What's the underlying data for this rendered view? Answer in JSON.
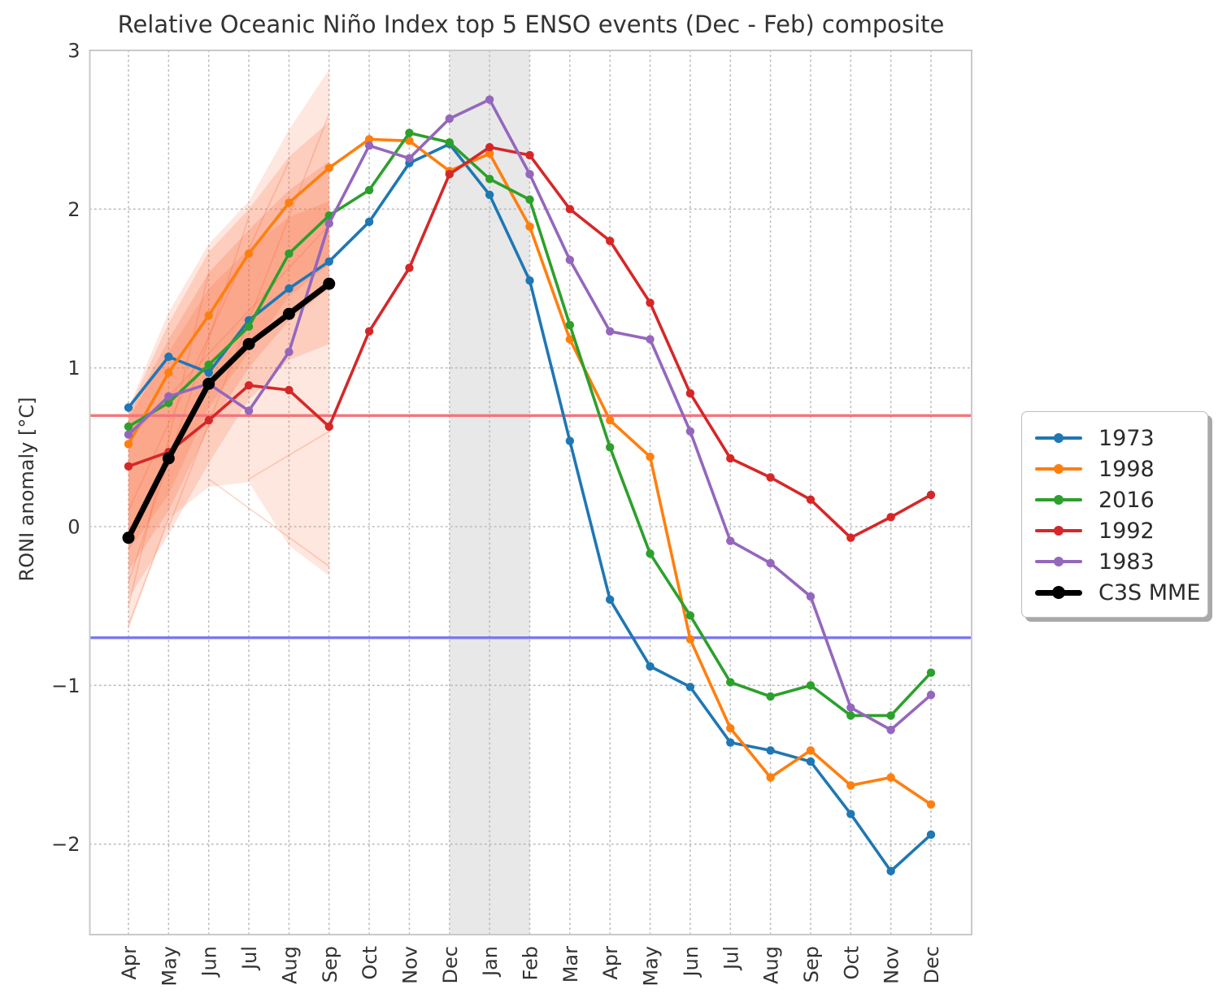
{
  "figure": {
    "title": "Relative Oceanic Niño Index top 5 ENSO events (Dec - Feb) composite",
    "ylabel": "RONI anomaly [°C]"
  },
  "chart_data": {
    "type": "line",
    "title": "Relative Oceanic Niño Index top 5 ENSO events (Dec - Feb) composite",
    "xlabel": "",
    "ylabel": "RONI anomaly [°C]",
    "categories": [
      "Apr",
      "May",
      "Jun",
      "Jul",
      "Aug",
      "Sep",
      "Oct",
      "Nov",
      "Dec",
      "Jan",
      "Feb",
      "Mar",
      "Apr",
      "May",
      "Jun",
      "Jul",
      "Aug",
      "Sep",
      "Oct",
      "Nov",
      "Dec"
    ],
    "yticks": [
      3,
      2,
      1,
      0,
      -1,
      -2
    ],
    "ylim": [
      -2.57,
      3.0
    ],
    "grid": true,
    "legend_position": "center right",
    "shaded_band": {
      "from": "Dec",
      "to": "Feb",
      "from_index": 8,
      "to_index": 10,
      "color": "#d8d8d8",
      "opacity": 0.6
    },
    "hlines": [
      {
        "name": "el-nino-threshold",
        "y": 0.7,
        "color": "#f4757b"
      },
      {
        "name": "la-nina-threshold",
        "y": -0.7,
        "color": "#7c78ee"
      }
    ],
    "series": [
      {
        "name": "1973",
        "color": "#1f77b4",
        "line_width": 3.6,
        "marker_radius": 5.2,
        "values": [
          0.75,
          1.07,
          0.97,
          1.3,
          1.5,
          1.67,
          1.92,
          2.29,
          2.41,
          2.09,
          1.55,
          0.54,
          -0.46,
          -0.88,
          -1.01,
          -1.36,
          -1.41,
          -1.48,
          -1.81,
          -2.17,
          -1.94
        ]
      },
      {
        "name": "1998",
        "color": "#ff7f0e",
        "line_width": 3.6,
        "marker_radius": 5.2,
        "values": [
          0.52,
          0.97,
          1.33,
          1.72,
          2.04,
          2.26,
          2.44,
          2.43,
          2.24,
          2.35,
          1.89,
          1.18,
          0.67,
          0.44,
          -0.71,
          -1.27,
          -1.58,
          -1.41,
          -1.63,
          -1.58,
          -1.75
        ]
      },
      {
        "name": "2016",
        "color": "#2ca02c",
        "line_width": 3.6,
        "marker_radius": 5.2,
        "values": [
          0.63,
          0.78,
          1.02,
          1.26,
          1.72,
          1.96,
          2.12,
          2.48,
          2.42,
          2.19,
          2.06,
          1.27,
          0.5,
          -0.17,
          -0.56,
          -0.98,
          -1.07,
          -1.0,
          -1.19,
          -1.19,
          -0.92
        ]
      },
      {
        "name": "1992",
        "color": "#d62728",
        "line_width": 3.6,
        "marker_radius": 5.2,
        "values": [
          0.38,
          0.47,
          0.67,
          0.89,
          0.86,
          0.63,
          1.23,
          1.63,
          2.22,
          2.39,
          2.34,
          2.0,
          1.8,
          1.41,
          0.84,
          0.43,
          0.31,
          0.17,
          -0.07,
          0.06,
          0.2
        ]
      },
      {
        "name": "1983",
        "color": "#9467bd",
        "line_width": 3.6,
        "marker_radius": 5.2,
        "values": [
          0.58,
          0.82,
          0.9,
          0.73,
          1.1,
          1.91,
          2.4,
          2.32,
          2.57,
          2.69,
          2.22,
          1.68,
          1.23,
          1.18,
          0.6,
          -0.09,
          -0.23,
          -0.44,
          -1.14,
          -1.28,
          -1.06
        ]
      },
      {
        "name": "C3S MME",
        "color": "#000000",
        "line_width": 7.0,
        "marker_radius": 7.5,
        "values": [
          -0.07,
          0.43,
          0.9,
          1.15,
          1.34,
          1.53,
          null,
          null,
          null,
          null,
          null,
          null,
          null,
          null,
          null,
          null,
          null,
          null,
          null,
          null,
          null
        ]
      }
    ],
    "ensemble_fan": {
      "color": "#fb6a3a",
      "months_span": [
        "Apr",
        "Sep"
      ],
      "layers": [
        {
          "opacity": 0.16,
          "upper": [
            0.75,
            1.35,
            1.78,
            2.05,
            2.5,
            2.88
          ],
          "lower": [
            -0.65,
            0.05,
            0.25,
            0.28,
            -0.12,
            -0.31
          ]
        },
        {
          "opacity": 0.2,
          "upper": [
            0.73,
            1.28,
            1.73,
            2.0,
            2.33,
            2.55
          ],
          "lower": [
            -0.45,
            -0.05,
            0.4,
            0.8,
            1.05,
            1.15
          ]
        },
        {
          "opacity": 0.22,
          "upper": [
            0.7,
            1.18,
            1.6,
            1.87,
            2.12,
            2.3
          ],
          "lower": [
            -0.28,
            0.1,
            0.62,
            1.0,
            1.3,
            1.5
          ]
        },
        {
          "opacity": 0.2,
          "upper": [
            0.68,
            1.1,
            1.5,
            1.75,
            1.95,
            2.05
          ],
          "lower": [
            -0.15,
            0.2,
            0.75,
            1.1,
            1.45,
            1.65
          ]
        }
      ],
      "streaks": [
        [
          [
            0,
            -0.62
          ],
          [
            1,
            0.05
          ]
        ],
        [
          [
            0,
            -0.5
          ],
          [
            2,
            1.6
          ]
        ],
        [
          [
            0,
            -0.35
          ],
          [
            3,
            1.95
          ]
        ],
        [
          [
            0,
            0.1
          ],
          [
            4,
            2.3
          ]
        ],
        [
          [
            1,
            0.0
          ],
          [
            5,
            2.6
          ]
        ],
        [
          [
            0,
            0.55
          ],
          [
            5,
            1.9
          ]
        ],
        [
          [
            2,
            0.3
          ],
          [
            5,
            -0.25
          ]
        ],
        [
          [
            3,
            0.3
          ],
          [
            5,
            0.6
          ]
        ]
      ]
    }
  }
}
